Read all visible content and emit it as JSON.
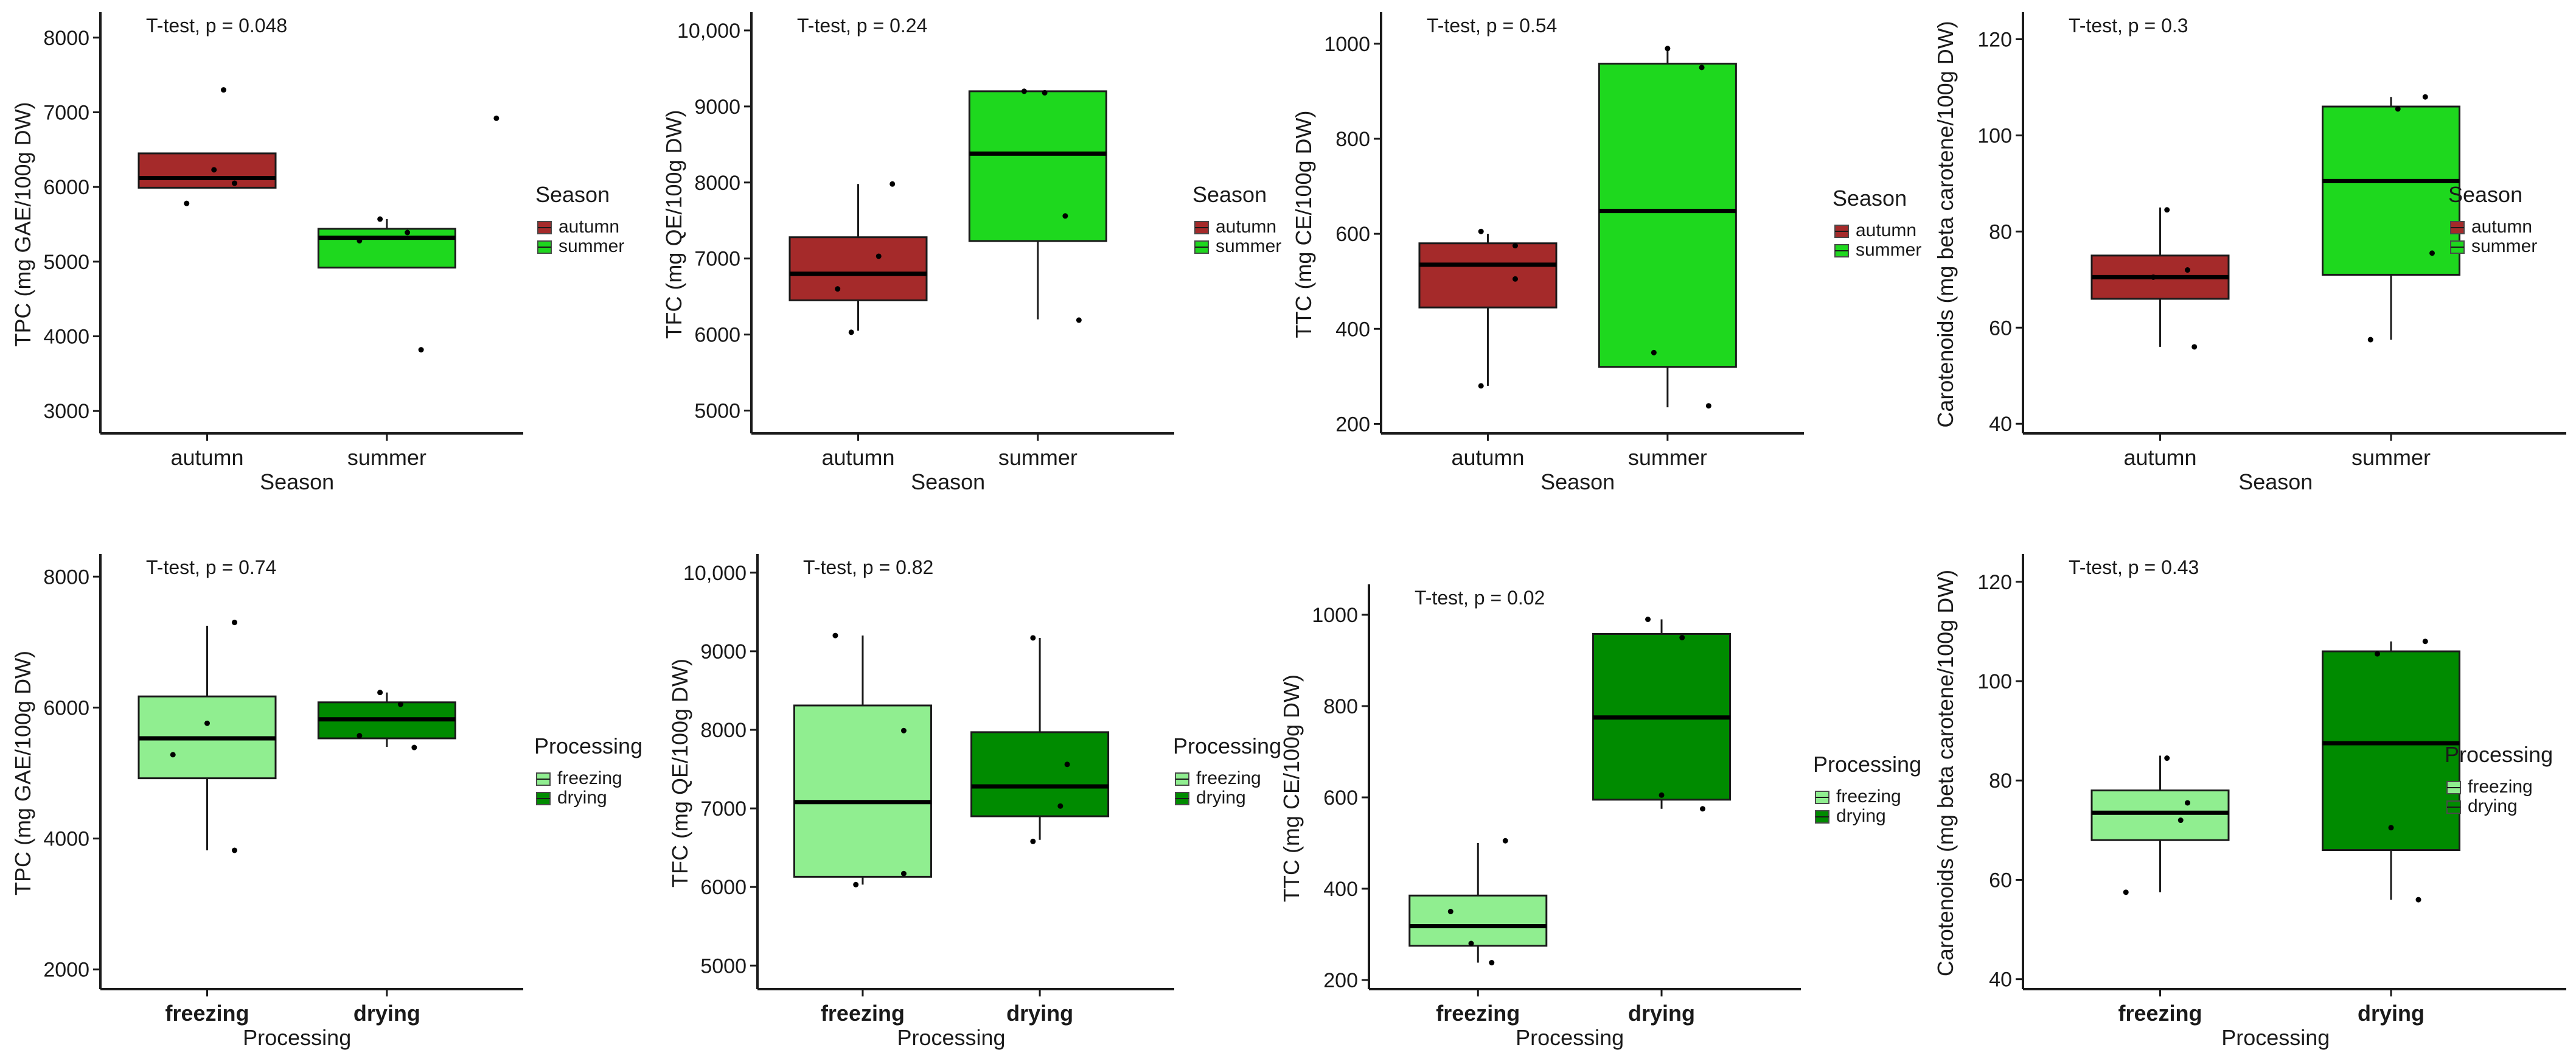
{
  "chart_data": [
    {
      "type": "boxplot",
      "title": "",
      "annotation": "T-test, p = 0.048",
      "xlabel": "Season",
      "ylabel": "TPC (mg GAE/100g DW)",
      "ylim": [
        2700,
        8300
      ],
      "yticks": [
        3000,
        4000,
        5000,
        6000,
        7000,
        8000
      ],
      "ytick_labels": [
        "3000",
        "4000",
        "5000",
        "6000",
        "7000",
        "8000"
      ],
      "categories": [
        "autumn",
        "summer"
      ],
      "legend": {
        "title": "Season",
        "entries": [
          "autumn",
          "summer"
        ]
      },
      "colors": [
        "#a52a2a",
        "#1ed81e"
      ],
      "boxes": [
        {
          "q1": 5990,
          "median": 6120,
          "q3": 6450,
          "whisker_low": 5990,
          "whisker_high": 6450,
          "points": [
            [
              -0.15,
              5780
            ],
            [
              0.05,
              6230
            ],
            [
              0.2,
              6050
            ],
            [
              0.12,
              7300
            ]
          ]
        },
        {
          "q1": 4920,
          "median": 5320,
          "q3": 5440,
          "whisker_low": 4920,
          "whisker_high": 5570,
          "points": [
            [
              -0.2,
              5280
            ],
            [
              -0.05,
              5570
            ],
            [
              0.15,
              5390
            ],
            [
              0.25,
              3820
            ],
            [
              0.8,
              6920
            ]
          ]
        }
      ]
    },
    {
      "type": "boxplot",
      "title": "",
      "annotation": "T-test, p = 0.24",
      "xlabel": "Season",
      "ylabel": "TFC (mg QE/100g DW)",
      "ylim": [
        4700,
        10200
      ],
      "yticks": [
        5000,
        6000,
        7000,
        8000,
        9000,
        10000
      ],
      "ytick_labels": [
        "5000",
        "6000",
        "7000",
        "8000",
        "9000",
        "10,000"
      ],
      "categories": [
        "autumn",
        "summer"
      ],
      "legend": {
        "title": "Season",
        "entries": [
          "autumn",
          "summer"
        ]
      },
      "colors": [
        "#a52a2a",
        "#1ed81e"
      ],
      "boxes": [
        {
          "q1": 6450,
          "median": 6800,
          "q3": 7280,
          "whisker_low": 6050,
          "whisker_high": 7980,
          "points": [
            [
              -0.15,
              6600
            ],
            [
              -0.05,
              6030
            ],
            [
              0.15,
              7030
            ],
            [
              0.25,
              7980
            ]
          ]
        },
        {
          "q1": 7230,
          "median": 8380,
          "q3": 9200,
          "whisker_low": 6200,
          "whisker_high": 9200,
          "points": [
            [
              -0.1,
              9200
            ],
            [
              0.05,
              9180
            ],
            [
              0.2,
              7560
            ],
            [
              0.3,
              6190
            ]
          ]
        }
      ]
    },
    {
      "type": "boxplot",
      "title": "",
      "annotation": "T-test, p = 0.54",
      "xlabel": "Season",
      "ylabel": "TTC (mg CE/100g DW)",
      "ylim": [
        180,
        1060
      ],
      "yticks": [
        200,
        400,
        600,
        800,
        1000
      ],
      "ytick_labels": [
        "200",
        "400",
        "600",
        "800",
        "1000"
      ],
      "categories": [
        "autumn",
        "summer"
      ],
      "legend": {
        "title": "Season",
        "entries": [
          "autumn",
          "summer"
        ]
      },
      "colors": [
        "#a52a2a",
        "#1ed81e"
      ],
      "boxes": [
        {
          "q1": 445,
          "median": 535,
          "q3": 580,
          "whisker_low": 280,
          "whisker_high": 600,
          "points": [
            [
              -0.05,
              280
            ],
            [
              -0.05,
              605
            ],
            [
              0.2,
              575
            ],
            [
              0.2,
              505
            ]
          ]
        },
        {
          "q1": 320,
          "median": 648,
          "q3": 958,
          "whisker_low": 235,
          "whisker_high": 990,
          "points": [
            [
              -0.1,
              350
            ],
            [
              0.0,
              990
            ],
            [
              0.25,
              950
            ],
            [
              0.3,
              238
            ]
          ]
        }
      ]
    },
    {
      "type": "boxplot",
      "title": "",
      "annotation": "T-test, p = 0.3",
      "xlabel": "Season",
      "ylabel": "Carotenoids (mg beta carotene/100g DW)",
      "ylim": [
        38,
        125
      ],
      "yticks": [
        40,
        60,
        80,
        100,
        120
      ],
      "ytick_labels": [
        "40",
        "60",
        "80",
        "100",
        "120"
      ],
      "categories": [
        "autumn",
        "summer"
      ],
      "legend": {
        "title": "Season",
        "entries": [
          "autumn",
          "summer"
        ]
      },
      "colors": [
        "#a52a2a",
        "#1ed81e"
      ],
      "boxes": [
        {
          "q1": 66,
          "median": 70.5,
          "q3": 75,
          "whisker_low": 56,
          "whisker_high": 85,
          "points": [
            [
              -0.05,
              70.5
            ],
            [
              0.05,
              84.5
            ],
            [
              0.2,
              72
            ],
            [
              0.25,
              56
            ]
          ]
        },
        {
          "q1": 71,
          "median": 90.5,
          "q3": 106,
          "whisker_low": 57.5,
          "whisker_high": 108,
          "points": [
            [
              -0.15,
              57.5
            ],
            [
              0.05,
              105.5
            ],
            [
              0.25,
              108
            ],
            [
              0.3,
              75.5
            ]
          ]
        }
      ]
    },
    {
      "type": "boxplot",
      "title": "",
      "annotation": "T-test, p = 0.74",
      "xlabel": "Processing",
      "ylabel": "TPC (mg GAE/100g DW)",
      "ylim": [
        1700,
        8300
      ],
      "yticks": [
        2000,
        4000,
        6000,
        8000
      ],
      "ytick_labels": [
        "2000",
        "4000",
        "6000",
        "8000"
      ],
      "categories": [
        "freezing",
        "drying"
      ],
      "legend": {
        "title": "Processing",
        "entries": [
          "freezing",
          "drying"
        ]
      },
      "colors": [
        "#90ee90",
        "#008b00"
      ],
      "boxes": [
        {
          "q1": 4920,
          "median": 5530,
          "q3": 6170,
          "whisker_low": 3820,
          "whisker_high": 7250,
          "points": [
            [
              -0.25,
              5280
            ],
            [
              0.0,
              5760
            ],
            [
              0.2,
              3820
            ],
            [
              0.2,
              7300
            ]
          ]
        },
        {
          "q1": 5530,
          "median": 5820,
          "q3": 6080,
          "whisker_low": 5400,
          "whisker_high": 6230,
          "points": [
            [
              -0.2,
              5570
            ],
            [
              -0.05,
              6230
            ],
            [
              0.1,
              6050
            ],
            [
              0.2,
              5390
            ]
          ]
        }
      ]
    },
    {
      "type": "boxplot",
      "title": "",
      "annotation": "T-test, p = 0.82",
      "xlabel": "Processing",
      "ylabel": "TFC (mg QE/100g DW)",
      "ylim": [
        4700,
        10200
      ],
      "yticks": [
        5000,
        6000,
        7000,
        8000,
        9000,
        10000
      ],
      "ytick_labels": [
        "5000",
        "6000",
        "7000",
        "8000",
        "9000",
        "10,000"
      ],
      "categories": [
        "freezing",
        "drying"
      ],
      "legend": {
        "title": "Processing",
        "entries": [
          "freezing",
          "drying"
        ]
      },
      "colors": [
        "#90ee90",
        "#008b00"
      ],
      "boxes": [
        {
          "q1": 6130,
          "median": 7080,
          "q3": 8310,
          "whisker_low": 6030,
          "whisker_high": 9200,
          "points": [
            [
              -0.2,
              9200
            ],
            [
              -0.05,
              6030
            ],
            [
              0.3,
              6170
            ],
            [
              0.3,
              7990
            ]
          ]
        },
        {
          "q1": 6900,
          "median": 7280,
          "q3": 7970,
          "whisker_low": 6600,
          "whisker_high": 9170,
          "points": [
            [
              -0.05,
              6580
            ],
            [
              -0.05,
              9170
            ],
            [
              0.15,
              7030
            ],
            [
              0.2,
              7560
            ]
          ]
        }
      ]
    },
    {
      "type": "boxplot",
      "title": "",
      "annotation": "T-test, p = 0.02",
      "xlabel": "Processing",
      "ylabel": "TTC (mg CE/100g DW)",
      "ylim": [
        180,
        1060
      ],
      "yticks": [
        200,
        400,
        600,
        800,
        1000
      ],
      "ytick_labels": [
        "200",
        "400",
        "600",
        "800",
        "1000"
      ],
      "categories": [
        "freezing",
        "drying"
      ],
      "legend": {
        "title": "Processing",
        "entries": [
          "freezing",
          "drying"
        ]
      },
      "colors": [
        "#90ee90",
        "#008b00"
      ],
      "boxes": [
        {
          "q1": 275,
          "median": 318,
          "q3": 385,
          "whisker_low": 238,
          "whisker_high": 500,
          "points": [
            [
              -0.2,
              350
            ],
            [
              -0.05,
              280
            ],
            [
              0.1,
              238
            ],
            [
              0.2,
              505
            ]
          ]
        },
        {
          "q1": 595,
          "median": 775,
          "q3": 958,
          "whisker_low": 575,
          "whisker_high": 990,
          "points": [
            [
              -0.1,
              990
            ],
            [
              0.0,
              605
            ],
            [
              0.15,
              950
            ],
            [
              0.3,
              575
            ]
          ]
        }
      ]
    },
    {
      "type": "boxplot",
      "title": "",
      "annotation": "T-test, p = 0.43",
      "xlabel": "Processing",
      "ylabel": "Carotenoids (mg beta carotene/100g DW)",
      "ylim": [
        38,
        125
      ],
      "yticks": [
        40,
        60,
        80,
        100,
        120
      ],
      "ytick_labels": [
        "40",
        "60",
        "80",
        "100",
        "120"
      ],
      "categories": [
        "freezing",
        "drying"
      ],
      "legend": {
        "title": "Processing",
        "entries": [
          "freezing",
          "drying"
        ]
      },
      "colors": [
        "#90ee90",
        "#008b00"
      ],
      "boxes": [
        {
          "q1": 68,
          "median": 73.5,
          "q3": 78,
          "whisker_low": 57.5,
          "whisker_high": 85,
          "points": [
            [
              -0.25,
              57.5
            ],
            [
              0.05,
              84.5
            ],
            [
              0.15,
              72
            ],
            [
              0.2,
              75.5
            ]
          ]
        },
        {
          "q1": 66,
          "median": 87.5,
          "q3": 106,
          "whisker_low": 56,
          "whisker_high": 108,
          "points": [
            [
              -0.1,
              105.5
            ],
            [
              0.0,
              70.5
            ],
            [
              0.2,
              56
            ],
            [
              0.25,
              108
            ]
          ]
        }
      ]
    }
  ]
}
